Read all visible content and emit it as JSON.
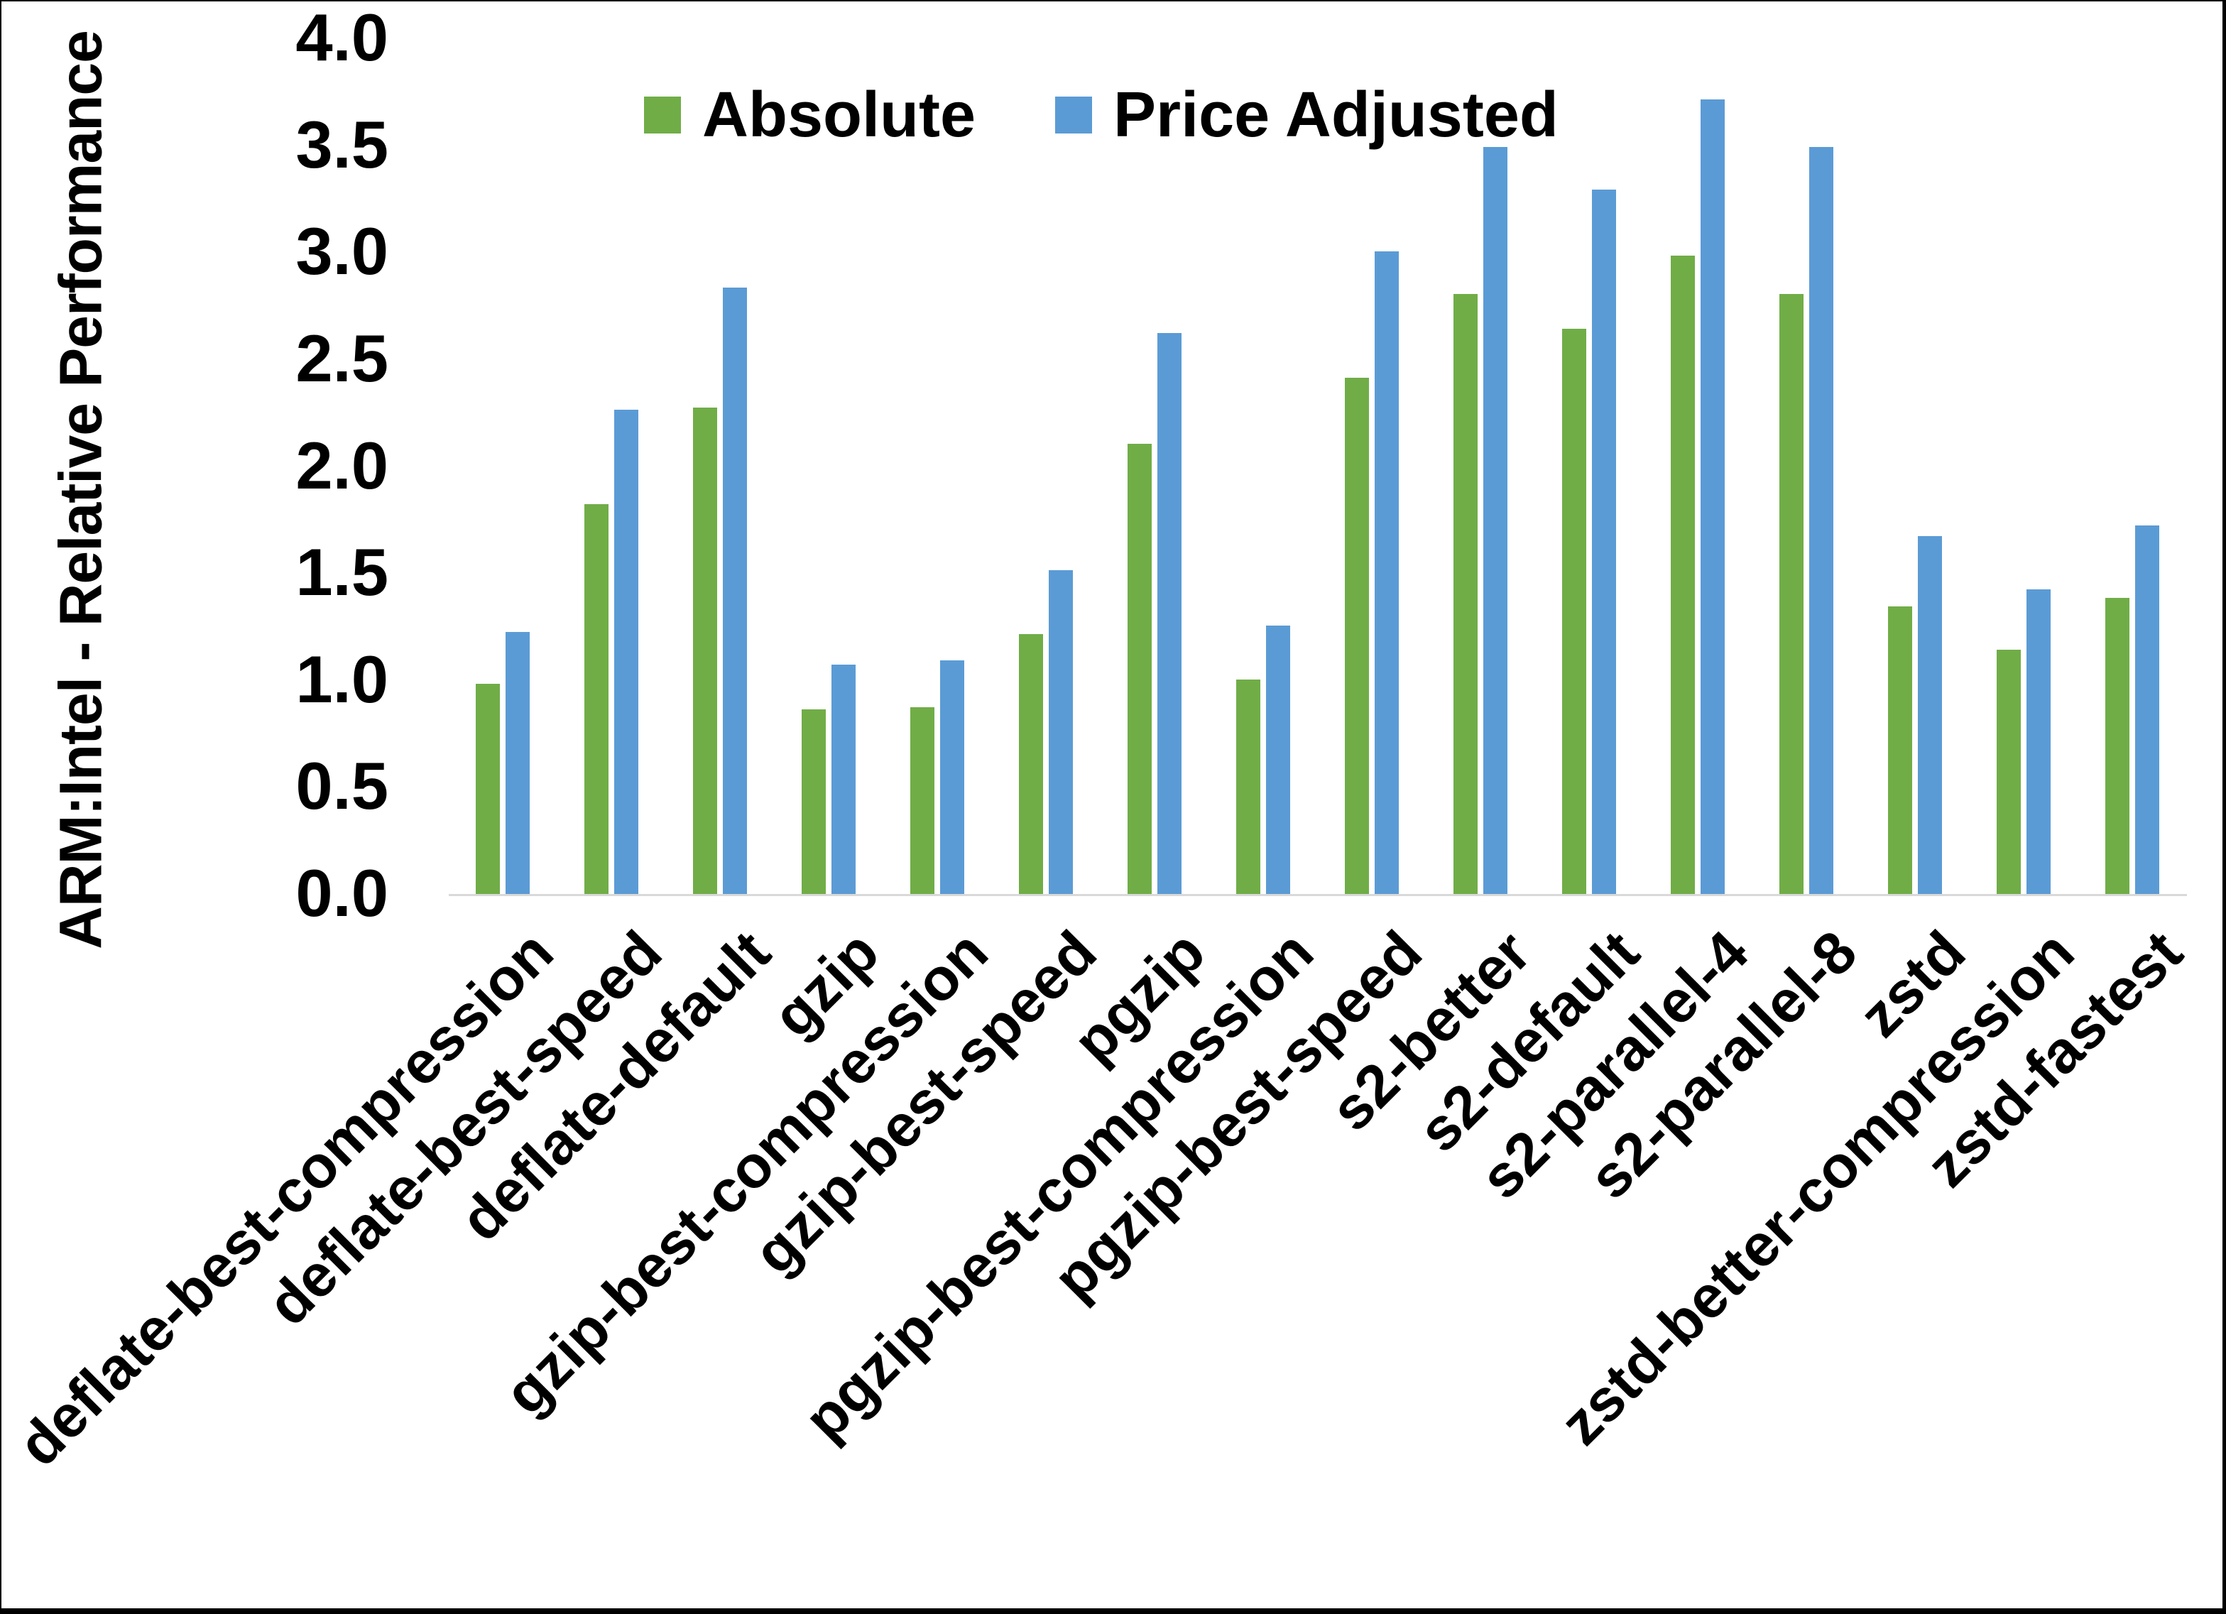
{
  "chart_data": {
    "type": "bar",
    "title": "",
    "xlabel": "",
    "ylabel": "ARM:Intel - Relative Performance",
    "ylim": [
      0.0,
      4.0
    ],
    "y_ticks": [
      "0.0",
      "0.5",
      "1.0",
      "1.5",
      "2.0",
      "2.5",
      "3.0",
      "3.5",
      "4.0"
    ],
    "grid": false,
    "legend_position": "top-center",
    "categories": [
      "deflate-best-compression",
      "deflate-best-speed",
      "deflate-default",
      "gzip",
      "gzip-best-compression",
      "gzip-best-speed",
      "pgzip",
      "pgzip-best-compression",
      "pgzip-best-speed",
      "s2-better",
      "s2-default",
      "s2-parallel-4",
      "s2-parallel-8",
      "zstd",
      "zstd-better-compression",
      "zstd-fastest"
    ],
    "series": [
      {
        "name": "Absolute",
        "color": "#70AD47",
        "values": [
          0.99,
          1.83,
          2.28,
          0.87,
          0.88,
          1.22,
          2.11,
          1.01,
          2.42,
          2.81,
          2.65,
          2.99,
          2.81,
          1.35,
          1.15,
          1.39
        ]
      },
      {
        "name": "Price Adjusted",
        "color": "#5B9BD5",
        "values": [
          1.23,
          2.27,
          2.84,
          1.08,
          1.1,
          1.52,
          2.63,
          1.26,
          3.01,
          3.5,
          3.3,
          3.72,
          3.5,
          1.68,
          1.43,
          1.73
        ]
      }
    ]
  },
  "colors": {
    "background": "#FFFFFF",
    "axis_line": "#D9D9D9",
    "text": "#000000",
    "border": "#000000"
  }
}
